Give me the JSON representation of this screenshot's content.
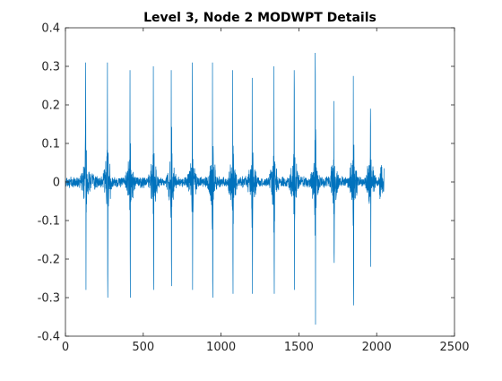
{
  "chart_data": {
    "type": "line",
    "title": "Level 3, Node 2 MODWPT Details",
    "xlabel": "",
    "ylabel": "",
    "xlim": [
      0,
      2500
    ],
    "ylim": [
      -0.4,
      0.4
    ],
    "xticks": [
      0,
      500,
      1000,
      1500,
      2000,
      2500
    ],
    "yticks": [
      -0.4,
      -0.3,
      -0.2,
      -0.1,
      0,
      0.1,
      0.2,
      0.3,
      0.4
    ],
    "xtick_labels": [
      "0",
      "500",
      "1000",
      "1500",
      "2000",
      "2500"
    ],
    "ytick_labels": [
      "-0.4",
      "-0.3",
      "-0.2",
      "-0.1",
      "0",
      "0.1",
      "0.2",
      "0.3",
      "0.4"
    ],
    "grid": false,
    "series": [
      {
        "color": "#0072BD",
        "n_samples": 2048,
        "baseline_noise_amplitude": 0.012,
        "bursts": [
          {
            "x": 130,
            "max": 0.31,
            "min": -0.28
          },
          {
            "x": 270,
            "max": 0.31,
            "min": -0.3
          },
          {
            "x": 415,
            "max": 0.29,
            "min": -0.3
          },
          {
            "x": 565,
            "max": 0.3,
            "min": -0.28
          },
          {
            "x": 680,
            "max": 0.29,
            "min": -0.27
          },
          {
            "x": 815,
            "max": 0.31,
            "min": -0.28
          },
          {
            "x": 945,
            "max": 0.31,
            "min": -0.3
          },
          {
            "x": 1075,
            "max": 0.29,
            "min": -0.29
          },
          {
            "x": 1200,
            "max": 0.27,
            "min": -0.29
          },
          {
            "x": 1340,
            "max": 0.3,
            "min": -0.29
          },
          {
            "x": 1470,
            "max": 0.29,
            "min": -0.28
          },
          {
            "x": 1605,
            "max": 0.335,
            "min": -0.37
          },
          {
            "x": 1725,
            "max": 0.21,
            "min": -0.21
          },
          {
            "x": 1850,
            "max": 0.275,
            "min": -0.32
          },
          {
            "x": 1960,
            "max": 0.19,
            "min": -0.22
          }
        ]
      }
    ]
  }
}
